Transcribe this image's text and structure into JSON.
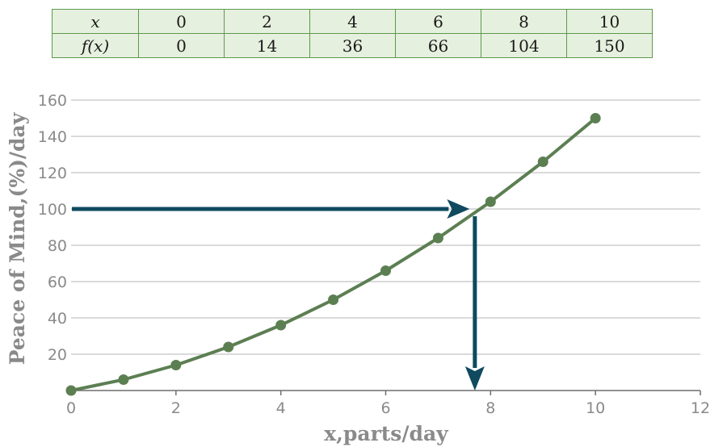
{
  "table": {
    "row_labels": [
      "x",
      "f(x)"
    ],
    "x_values": [
      "0",
      "2",
      "4",
      "6",
      "8",
      "10"
    ],
    "fx_values": [
      "0",
      "14",
      "36",
      "66",
      "104",
      "150"
    ]
  },
  "chart_data": {
    "type": "line",
    "xlabel": "x,parts/day",
    "ylabel": "Peace of Mind,(%)/day",
    "xlim": [
      0,
      12
    ],
    "ylim": [
      0,
      160
    ],
    "x_ticks": [
      "0",
      "2",
      "4",
      "6",
      "8",
      "10",
      "12"
    ],
    "y_ticks": [
      "20",
      "40",
      "60",
      "80",
      "100",
      "120",
      "140",
      "160"
    ],
    "grid": "horizontal",
    "series": [
      {
        "x": [
          0,
          1,
          2,
          3,
          4,
          5,
          6,
          7,
          8,
          9,
          10
        ],
        "y": [
          0,
          6,
          14,
          24,
          36,
          50,
          66,
          84,
          104,
          126,
          150
        ]
      }
    ],
    "annotations": [
      {
        "type": "horizontal-arrow",
        "y": 100,
        "x_from": 0,
        "x_to": 7.6
      },
      {
        "type": "vertical-arrow",
        "x": 7.7,
        "y_from": 96,
        "y_to": 0
      }
    ],
    "colors": {
      "line": "#5c7f52",
      "marker": "#5c7f52",
      "arrow": "#0f4a5f",
      "grid": "#c4c4c4",
      "axis_text": "#8a8a8a",
      "label_text": "#8a8a8a"
    }
  }
}
